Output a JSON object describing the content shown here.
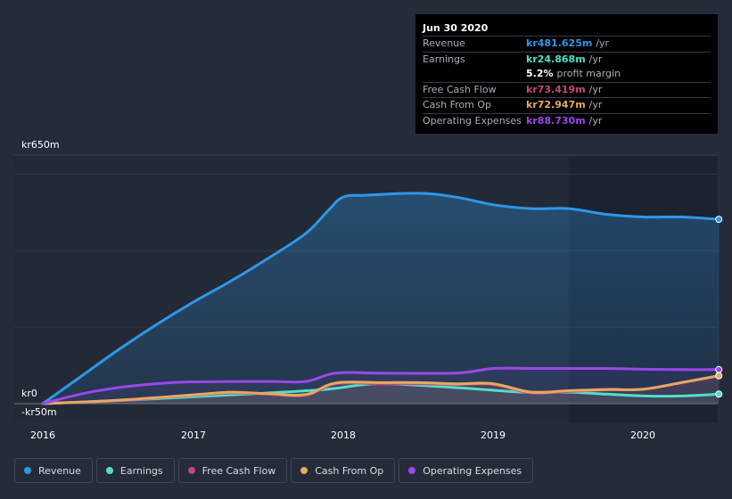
{
  "chart_data": {
    "type": "area",
    "x_labels": [
      "2016",
      "2017",
      "2018",
      "2019",
      "2020"
    ],
    "y_labels": {
      "top": "kr650m",
      "zero": "kr0",
      "bottom": "-kr50m"
    },
    "ylim": [
      -50,
      650
    ],
    "forecast_region_start": 2019.5,
    "series": [
      {
        "name": "Revenue",
        "color": "#2e97e8",
        "fill": true,
        "points": [
          [
            2016.0,
            0
          ],
          [
            2016.25,
            70
          ],
          [
            2016.5,
            140
          ],
          [
            2016.75,
            205
          ],
          [
            2017.0,
            265
          ],
          [
            2017.25,
            320
          ],
          [
            2017.5,
            380
          ],
          [
            2017.75,
            445
          ],
          [
            2017.9,
            505
          ],
          [
            2018.0,
            540
          ],
          [
            2018.15,
            545
          ],
          [
            2018.5,
            550
          ],
          [
            2018.75,
            540
          ],
          [
            2019.0,
            520
          ],
          [
            2019.25,
            510
          ],
          [
            2019.5,
            510
          ],
          [
            2019.75,
            495
          ],
          [
            2020.0,
            488
          ],
          [
            2020.25,
            488
          ],
          [
            2020.5,
            482
          ]
        ]
      },
      {
        "name": "Earnings",
        "color": "#4fe0c6",
        "fill": false,
        "points": [
          [
            2016.0,
            0
          ],
          [
            2016.5,
            8
          ],
          [
            2017.0,
            18
          ],
          [
            2017.5,
            28
          ],
          [
            2017.9,
            38
          ],
          [
            2018.2,
            52
          ],
          [
            2018.5,
            48
          ],
          [
            2018.9,
            38
          ],
          [
            2019.2,
            30
          ],
          [
            2019.5,
            30
          ],
          [
            2019.75,
            25
          ],
          [
            2020.0,
            20
          ],
          [
            2020.25,
            20
          ],
          [
            2020.5,
            25
          ]
        ]
      },
      {
        "name": "Free Cash Flow",
        "color": "#c2477f",
        "fill": false,
        "points": [
          [
            2016.0,
            0
          ],
          [
            2016.5,
            8
          ],
          [
            2017.0,
            22
          ],
          [
            2017.25,
            28
          ],
          [
            2017.5,
            25
          ],
          [
            2017.75,
            22
          ],
          [
            2017.95,
            52
          ],
          [
            2018.25,
            52
          ],
          [
            2018.5,
            52
          ],
          [
            2018.75,
            50
          ],
          [
            2019.0,
            50
          ],
          [
            2019.25,
            28
          ],
          [
            2019.5,
            32
          ],
          [
            2019.75,
            36
          ],
          [
            2020.0,
            38
          ],
          [
            2020.25,
            55
          ],
          [
            2020.5,
            73
          ]
        ]
      },
      {
        "name": "Cash From Op",
        "color": "#e8a85f",
        "fill": false,
        "points": [
          [
            2016.0,
            0
          ],
          [
            2016.5,
            9
          ],
          [
            2017.0,
            23
          ],
          [
            2017.25,
            30
          ],
          [
            2017.5,
            26
          ],
          [
            2017.75,
            24
          ],
          [
            2017.95,
            54
          ],
          [
            2018.25,
            55
          ],
          [
            2018.5,
            55
          ],
          [
            2018.75,
            52
          ],
          [
            2019.0,
            52
          ],
          [
            2019.25,
            30
          ],
          [
            2019.5,
            34
          ],
          [
            2019.75,
            37
          ],
          [
            2020.0,
            38
          ],
          [
            2020.25,
            55
          ],
          [
            2020.5,
            73
          ]
        ]
      },
      {
        "name": "Operating Expenses",
        "color": "#9b47ea",
        "fill": false,
        "points": [
          [
            2016.0,
            0
          ],
          [
            2016.25,
            25
          ],
          [
            2016.5,
            42
          ],
          [
            2016.75,
            52
          ],
          [
            2017.0,
            57
          ],
          [
            2017.5,
            58
          ],
          [
            2017.75,
            58
          ],
          [
            2017.95,
            80
          ],
          [
            2018.25,
            80
          ],
          [
            2018.75,
            80
          ],
          [
            2019.0,
            92
          ],
          [
            2019.25,
            92
          ],
          [
            2019.5,
            92
          ],
          [
            2019.75,
            92
          ],
          [
            2020.0,
            90
          ],
          [
            2020.25,
            89
          ],
          [
            2020.5,
            89
          ]
        ]
      }
    ]
  },
  "tooltip": {
    "date": "Jun 30 2020",
    "rows": [
      {
        "label": "Revenue",
        "value": "kr481.625m",
        "unit": "/yr",
        "color": "#2e97e8"
      },
      {
        "label": "Earnings",
        "value": "kr24.868m",
        "unit": "/yr",
        "color": "#4fe0c6"
      },
      {
        "label": "",
        "value": "5.2%",
        "unit": "profit margin",
        "color": "#ffffff"
      },
      {
        "label": "Free Cash Flow",
        "value": "kr73.419m",
        "unit": "/yr",
        "color": "#c2477f"
      },
      {
        "label": "Cash From Op",
        "value": "kr72.947m",
        "unit": "/yr",
        "color": "#e8a85f"
      },
      {
        "label": "Operating Expenses",
        "value": "kr88.730m",
        "unit": "/yr",
        "color": "#9b47ea"
      }
    ]
  },
  "legend": [
    {
      "label": "Revenue",
      "color": "#2e97e8"
    },
    {
      "label": "Earnings",
      "color": "#4fe0c6"
    },
    {
      "label": "Free Cash Flow",
      "color": "#c2477f"
    },
    {
      "label": "Cash From Op",
      "color": "#e8a85f"
    },
    {
      "label": "Operating Expenses",
      "color": "#9b47ea"
    }
  ]
}
